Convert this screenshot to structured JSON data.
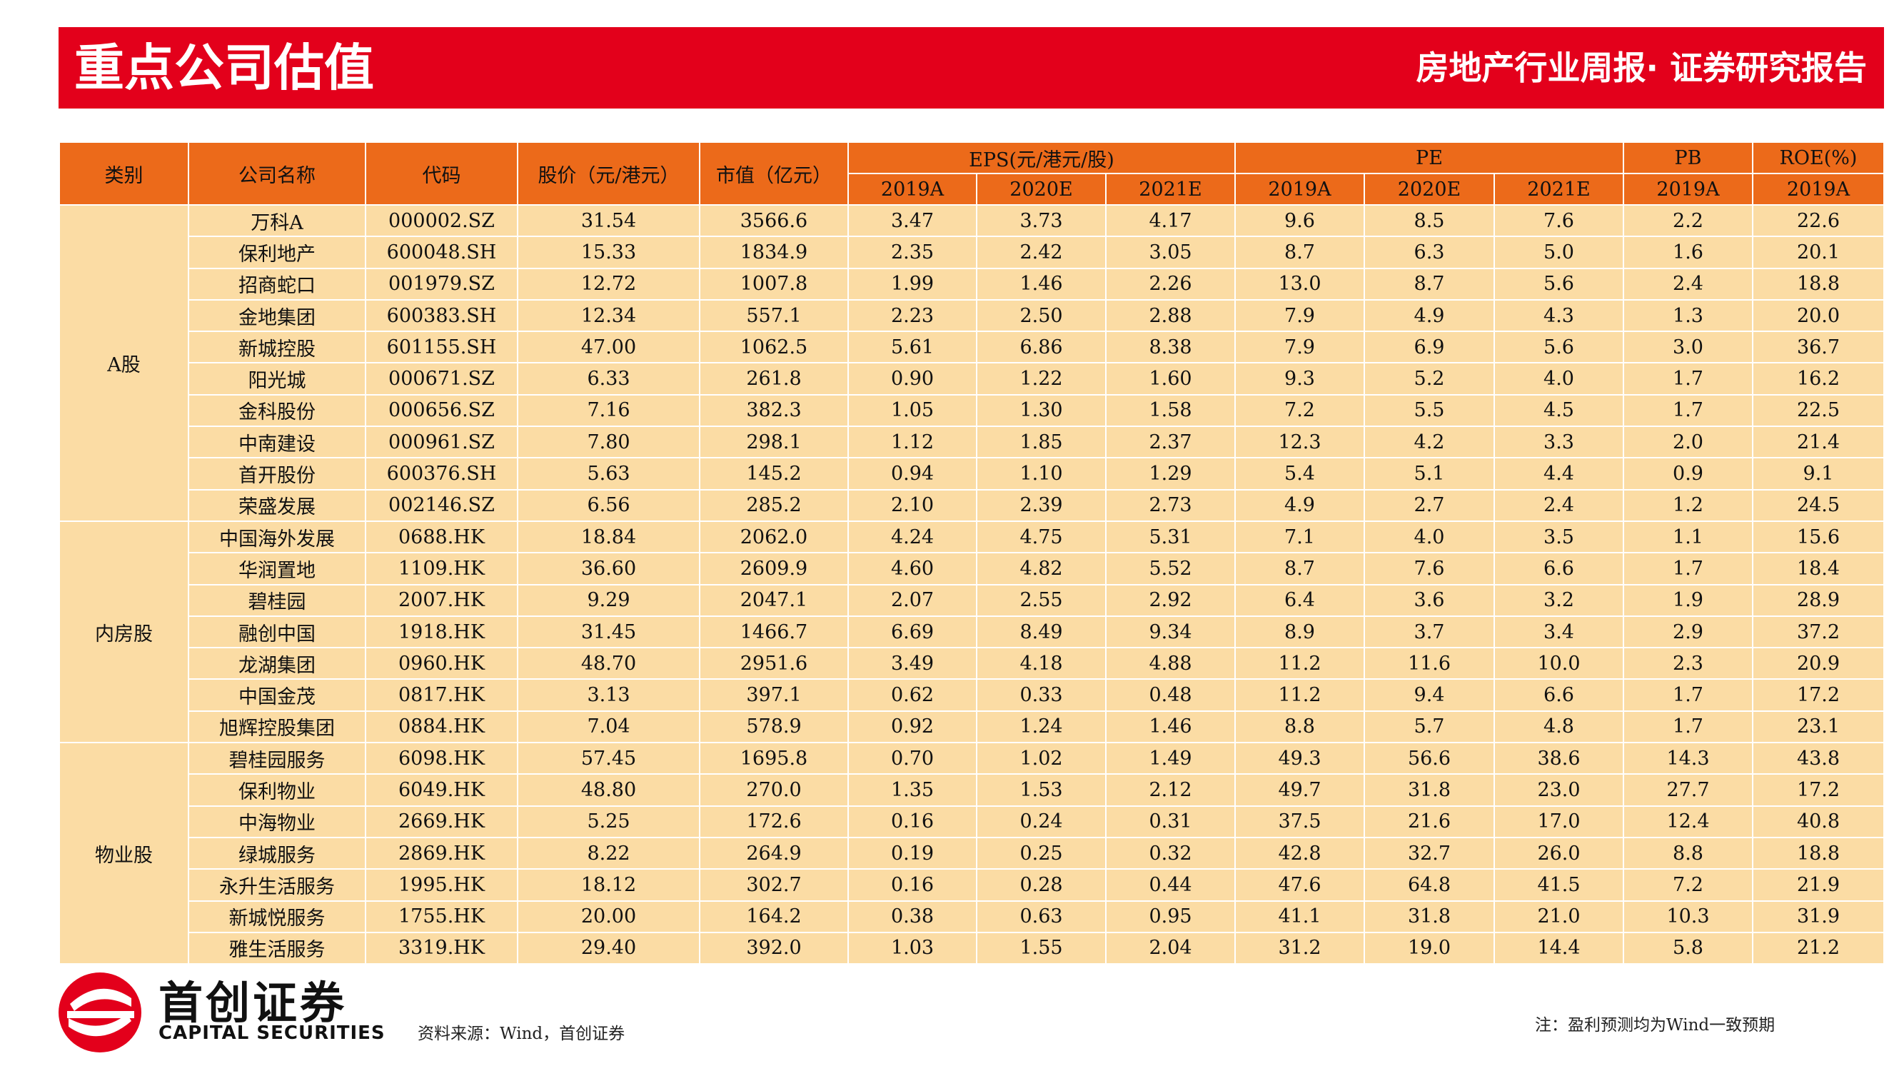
{
  "header": {
    "title": "重点公司估值",
    "subtitle": "房地产行业周报· 证券研究报告"
  },
  "table": {
    "head_top": [
      "类别",
      "公司名称",
      "代码",
      "股价（元/港元）",
      "市值（亿元）",
      "EPS(元/港元/股)",
      "PE",
      "PB",
      "ROE(%)"
    ],
    "head_sub": [
      "2019A",
      "2020E",
      "2021E",
      "2019A",
      "2020E",
      "2021E",
      "2019A",
      "2019A"
    ],
    "groups": [
      {
        "category": "A股",
        "rows": [
          [
            "万科A",
            "000002.SZ",
            "31.54",
            "3566.6",
            "3.47",
            "3.73",
            "4.17",
            "9.6",
            "8.5",
            "7.6",
            "2.2",
            "22.6"
          ],
          [
            "保利地产",
            "600048.SH",
            "15.33",
            "1834.9",
            "2.35",
            "2.42",
            "3.05",
            "8.7",
            "6.3",
            "5.0",
            "1.6",
            "20.1"
          ],
          [
            "招商蛇口",
            "001979.SZ",
            "12.72",
            "1007.8",
            "1.99",
            "1.46",
            "2.26",
            "13.0",
            "8.7",
            "5.6",
            "2.4",
            "18.8"
          ],
          [
            "金地集团",
            "600383.SH",
            "12.34",
            "557.1",
            "2.23",
            "2.50",
            "2.88",
            "7.9",
            "4.9",
            "4.3",
            "1.3",
            "20.0"
          ],
          [
            "新城控股",
            "601155.SH",
            "47.00",
            "1062.5",
            "5.61",
            "6.86",
            "8.38",
            "7.9",
            "6.9",
            "5.6",
            "3.0",
            "36.7"
          ],
          [
            "阳光城",
            "000671.SZ",
            "6.33",
            "261.8",
            "0.90",
            "1.22",
            "1.60",
            "9.3",
            "5.2",
            "4.0",
            "1.7",
            "16.2"
          ],
          [
            "金科股份",
            "000656.SZ",
            "7.16",
            "382.3",
            "1.05",
            "1.30",
            "1.58",
            "7.2",
            "5.5",
            "4.5",
            "1.7",
            "22.5"
          ],
          [
            "中南建设",
            "000961.SZ",
            "7.80",
            "298.1",
            "1.12",
            "1.85",
            "2.37",
            "12.3",
            "4.2",
            "3.3",
            "2.0",
            "21.4"
          ],
          [
            "首开股份",
            "600376.SH",
            "5.63",
            "145.2",
            "0.94",
            "1.10",
            "1.29",
            "5.4",
            "5.1",
            "4.4",
            "0.9",
            "9.1"
          ],
          [
            "荣盛发展",
            "002146.SZ",
            "6.56",
            "285.2",
            "2.10",
            "2.39",
            "2.73",
            "4.9",
            "2.7",
            "2.4",
            "1.2",
            "24.5"
          ]
        ]
      },
      {
        "category": "内房股",
        "rows": [
          [
            "中国海外发展",
            "0688.HK",
            "18.84",
            "2062.0",
            "4.24",
            "4.75",
            "5.31",
            "7.1",
            "4.0",
            "3.5",
            "1.1",
            "15.6"
          ],
          [
            "华润置地",
            "1109.HK",
            "36.60",
            "2609.9",
            "4.60",
            "4.82",
            "5.52",
            "8.7",
            "7.6",
            "6.6",
            "1.7",
            "18.4"
          ],
          [
            "碧桂园",
            "2007.HK",
            "9.29",
            "2047.1",
            "2.07",
            "2.55",
            "2.92",
            "6.4",
            "3.6",
            "3.2",
            "1.9",
            "28.9"
          ],
          [
            "融创中国",
            "1918.HK",
            "31.45",
            "1466.7",
            "6.69",
            "8.49",
            "9.34",
            "8.9",
            "3.7",
            "3.4",
            "2.9",
            "37.2"
          ],
          [
            "龙湖集团",
            "0960.HK",
            "48.70",
            "2951.6",
            "3.49",
            "4.18",
            "4.88",
            "11.2",
            "11.6",
            "10.0",
            "2.3",
            "20.9"
          ],
          [
            "中国金茂",
            "0817.HK",
            "3.13",
            "397.1",
            "0.62",
            "0.33",
            "0.48",
            "11.2",
            "9.4",
            "6.6",
            "1.7",
            "17.2"
          ],
          [
            "旭辉控股集团",
            "0884.HK",
            "7.04",
            "578.9",
            "0.92",
            "1.24",
            "1.46",
            "8.8",
            "5.7",
            "4.8",
            "1.7",
            "23.1"
          ]
        ]
      },
      {
        "category": "物业股",
        "rows": [
          [
            "碧桂园服务",
            "6098.HK",
            "57.45",
            "1695.8",
            "0.70",
            "1.02",
            "1.49",
            "49.3",
            "56.6",
            "38.6",
            "14.3",
            "43.8"
          ],
          [
            "保利物业",
            "6049.HK",
            "48.80",
            "270.0",
            "1.35",
            "1.53",
            "2.12",
            "49.7",
            "31.8",
            "23.0",
            "27.7",
            "17.2"
          ],
          [
            "中海物业",
            "2669.HK",
            "5.25",
            "172.6",
            "0.16",
            "0.24",
            "0.31",
            "37.5",
            "21.6",
            "17.0",
            "12.4",
            "40.8"
          ],
          [
            "绿城服务",
            "2869.HK",
            "8.22",
            "264.9",
            "0.19",
            "0.25",
            "0.32",
            "42.8",
            "32.7",
            "26.0",
            "8.8",
            "18.8"
          ],
          [
            "永升生活服务",
            "1995.HK",
            "18.12",
            "302.7",
            "0.16",
            "0.28",
            "0.44",
            "47.6",
            "64.8",
            "41.5",
            "7.2",
            "21.9"
          ],
          [
            "新城悦服务",
            "1755.HK",
            "20.00",
            "164.2",
            "0.38",
            "0.63",
            "0.95",
            "41.1",
            "31.8",
            "21.0",
            "10.3",
            "31.9"
          ],
          [
            "雅生活服务",
            "3319.HK",
            "29.40",
            "392.0",
            "1.03",
            "1.55",
            "2.04",
            "31.2",
            "19.0",
            "14.4",
            "5.8",
            "21.2"
          ]
        ]
      }
    ]
  },
  "footer": {
    "logo_cn": "首创证券",
    "logo_en": "CAPITAL SECURITIES",
    "source": "资料来源：Wind，首创证券",
    "note": "注：盈利预测均为Wind一致预期"
  },
  "colors": {
    "banner": "#e3001b",
    "header_row": "#ec6a1a",
    "body_row": "#fbdca4",
    "logo": "#e3001b"
  }
}
